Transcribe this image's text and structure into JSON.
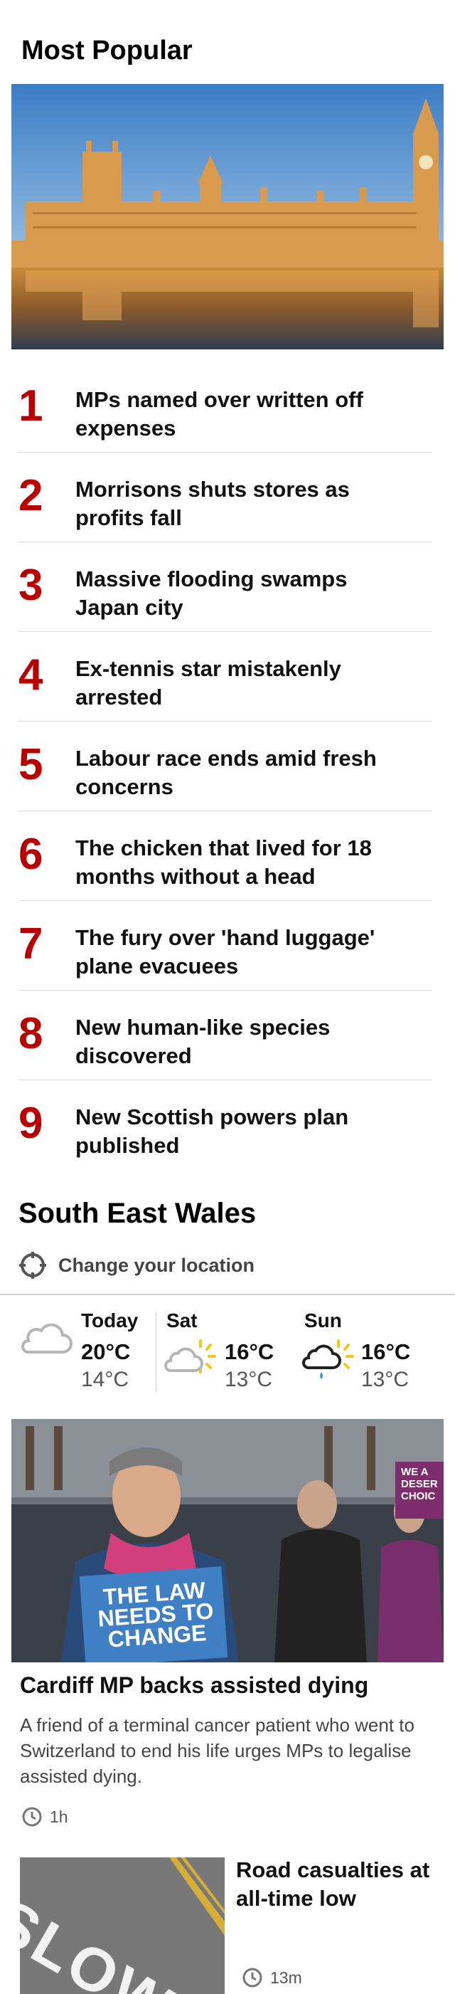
{
  "most_popular": {
    "title": "Most Popular",
    "items": [
      {
        "rank": "1",
        "headline": "MPs named over written off expenses"
      },
      {
        "rank": "2",
        "headline": "Morrisons shuts stores as profits fall"
      },
      {
        "rank": "3",
        "headline": "Massive flooding swamps Japan city"
      },
      {
        "rank": "4",
        "headline": "Ex-tennis star mistakenly arrested"
      },
      {
        "rank": "5",
        "headline": "Labour race ends amid fresh concerns"
      },
      {
        "rank": "6",
        "headline": "The chicken that lived for 18 months without a head"
      },
      {
        "rank": "7",
        "headline": "The fury over 'hand luggage' plane evacuees"
      },
      {
        "rank": "8",
        "headline": "New human-like species discovered"
      },
      {
        "rank": "9",
        "headline": "New Scottish powers plan published"
      }
    ]
  },
  "local": {
    "title": "South East Wales",
    "change_location_label": "Change your location"
  },
  "weather": [
    {
      "day": "Today",
      "high": "20°C",
      "low": "14°C",
      "icon": "cloud-icon"
    },
    {
      "day": "Sat",
      "high": "16°C",
      "low": "13°C",
      "icon": "sun-cloud-icon"
    },
    {
      "day": "Sun",
      "high": "16°C",
      "low": "13°C",
      "icon": "sun-rain-cloud-icon"
    }
  ],
  "stories": {
    "main": {
      "headline": "Cardiff MP backs assisted dying",
      "summary": "A friend of a terminal cancer patient who went to Switzerland to end his life urges MPs to legalise assisted dying.",
      "time": "1h",
      "image_text_1": "THE LAW",
      "image_text_2": "NEEDS TO",
      "image_text_3": "CHANGE",
      "image_text_4": "WE A",
      "image_text_5": "DESER",
      "image_text_6": "CHOIC"
    },
    "secondary": {
      "headline": "Road casualties at all-time low",
      "time": "13m",
      "image_text": "SLOW"
    }
  },
  "colors": {
    "accent_red": "#b80000",
    "divider": "#dcdcdc",
    "sun": "#f5c518"
  }
}
